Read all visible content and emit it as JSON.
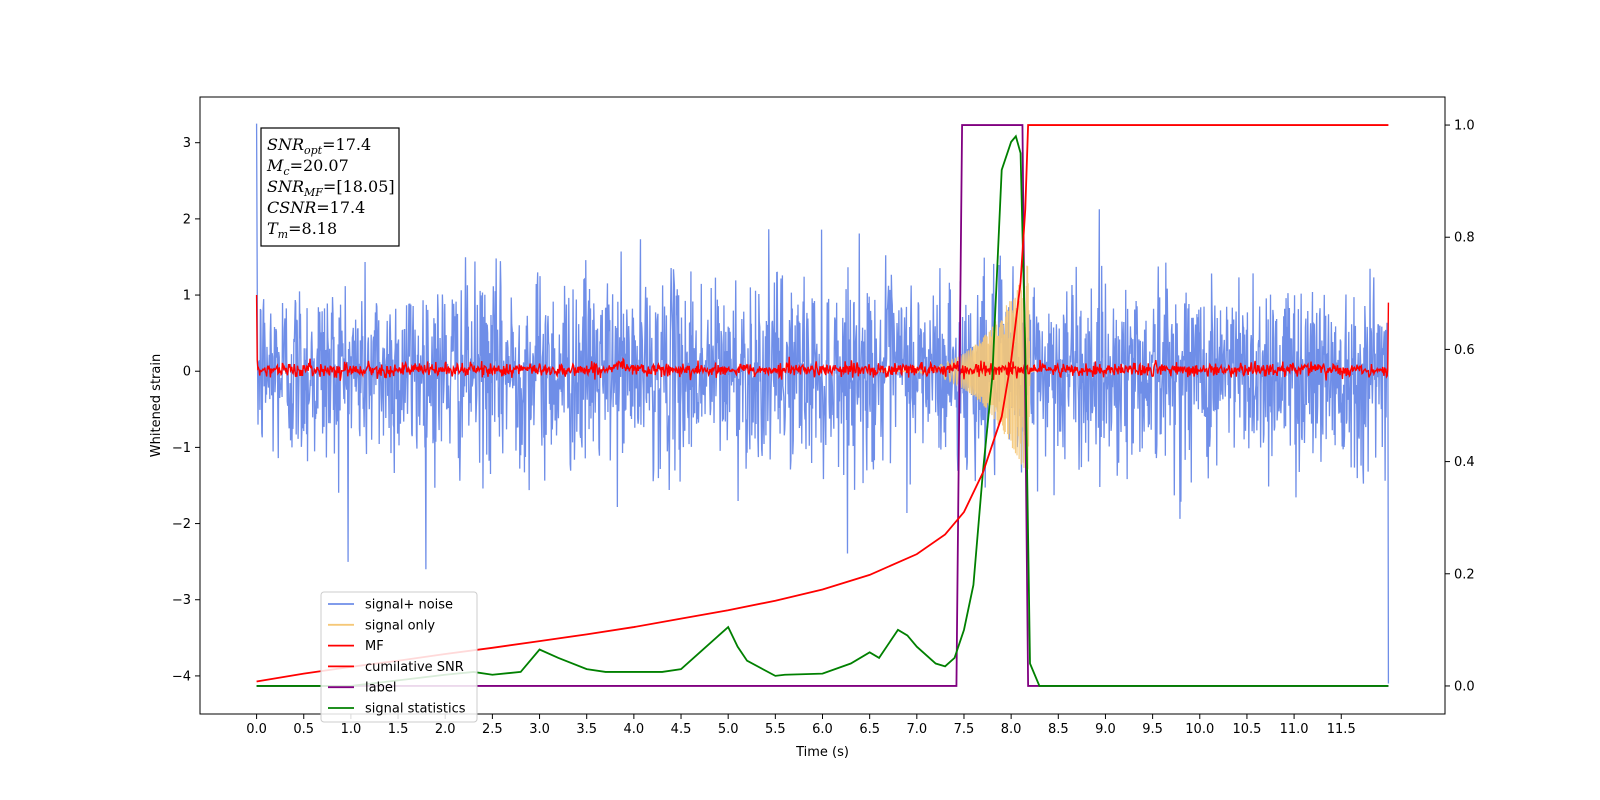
{
  "chart_data": {
    "type": "line",
    "xlabel": "Time (s)",
    "ylabel": "Whitened strain",
    "xlim": [
      -0.6,
      12.6
    ],
    "ylim": [
      -4.5,
      3.6
    ],
    "y2lim": [
      -0.05,
      1.05
    ],
    "x_ticks": [
      "0.0",
      "0.5",
      "1.0",
      "1.5",
      "2.0",
      "2.5",
      "3.0",
      "3.5",
      "4.0",
      "4.5",
      "5.0",
      "5.5",
      "6.0",
      "6.5",
      "7.0",
      "7.5",
      "8.0",
      "8.5",
      "9.0",
      "9.5",
      "10.0",
      "10.5",
      "11.0",
      "11.5"
    ],
    "y_ticks": [
      "3",
      "2",
      "1",
      "0",
      "−1",
      "−2",
      "−3",
      "−4"
    ],
    "y2_ticks": [
      "1.0",
      "0.8",
      "0.6",
      "0.4",
      "0.2",
      "0.0"
    ],
    "grid": false,
    "legend_position": "lower-left",
    "annotation": {
      "lines": [
        {
          "base": "SNR",
          "sub": "opt",
          "value": "=17.4"
        },
        {
          "base": "M",
          "sub": "c",
          "value": "=20.07"
        },
        {
          "base": "SNR",
          "sub": "MF",
          "value": "=[18.05]"
        },
        {
          "base": "CSNR",
          "sub": "",
          "value": "=17.4"
        },
        {
          "base": "T",
          "sub": "m",
          "value": "=8.18"
        }
      ]
    },
    "series": [
      {
        "name": "signal+ noise",
        "color": "#6f8ee8",
        "axis": "left",
        "description_range": [
          -2.2,
          3.3
        ]
      },
      {
        "name": "signal only",
        "color": "#f5c878",
        "axis": "left",
        "chirp_start": 6.6,
        "chirp_end": 8.2,
        "max_amplitude": 1.5
      },
      {
        "name": "MF",
        "color": "#ff0000",
        "axis": "left"
      },
      {
        "name": "cumilative SNR",
        "color": "#ff0000",
        "axis": "right",
        "x": [
          0.0,
          0.5,
          1.0,
          1.5,
          2.0,
          2.5,
          3.0,
          3.5,
          4.0,
          4.5,
          5.0,
          5.5,
          6.0,
          6.5,
          7.0,
          7.3,
          7.5,
          7.7,
          7.9,
          8.0,
          8.1,
          8.15,
          8.18,
          8.2,
          12.0
        ],
        "values": [
          0.008,
          0.022,
          0.034,
          0.045,
          0.057,
          0.068,
          0.08,
          0.092,
          0.105,
          0.12,
          0.135,
          0.152,
          0.172,
          0.198,
          0.235,
          0.27,
          0.31,
          0.38,
          0.48,
          0.58,
          0.72,
          0.85,
          1.0,
          1.0,
          1.0
        ]
      },
      {
        "name": "label",
        "color": "#800080",
        "axis": "right",
        "x": [
          0.0,
          7.42,
          7.48,
          8.12,
          8.18,
          12.0
        ],
        "values": [
          0.0,
          0.0,
          1.0,
          1.0,
          0.0,
          0.0
        ]
      },
      {
        "name": "signal statistics",
        "color": "#008000",
        "axis": "right",
        "x": [
          0.0,
          0.5,
          1.0,
          1.5,
          2.0,
          2.3,
          2.5,
          2.8,
          3.0,
          3.2,
          3.5,
          3.7,
          4.0,
          4.3,
          4.5,
          4.7,
          4.9,
          5.0,
          5.1,
          5.2,
          5.5,
          5.6,
          6.0,
          6.3,
          6.5,
          6.6,
          6.8,
          6.9,
          7.0,
          7.2,
          7.3,
          7.4,
          7.5,
          7.6,
          7.7,
          7.8,
          7.9,
          8.0,
          8.05,
          8.1,
          8.15,
          8.2,
          8.3,
          9.0,
          10.0,
          11.0,
          12.0
        ],
        "values": [
          0.0,
          0.0,
          0.0,
          0.01,
          0.02,
          0.025,
          0.02,
          0.025,
          0.065,
          0.05,
          0.03,
          0.025,
          0.025,
          0.025,
          0.03,
          0.06,
          0.09,
          0.105,
          0.07,
          0.045,
          0.018,
          0.02,
          0.022,
          0.04,
          0.06,
          0.05,
          0.1,
          0.09,
          0.07,
          0.04,
          0.035,
          0.05,
          0.1,
          0.18,
          0.38,
          0.55,
          0.92,
          0.97,
          0.98,
          0.95,
          0.6,
          0.04,
          0.0,
          0.0,
          0.0,
          0.0,
          0.0
        ]
      }
    ]
  }
}
